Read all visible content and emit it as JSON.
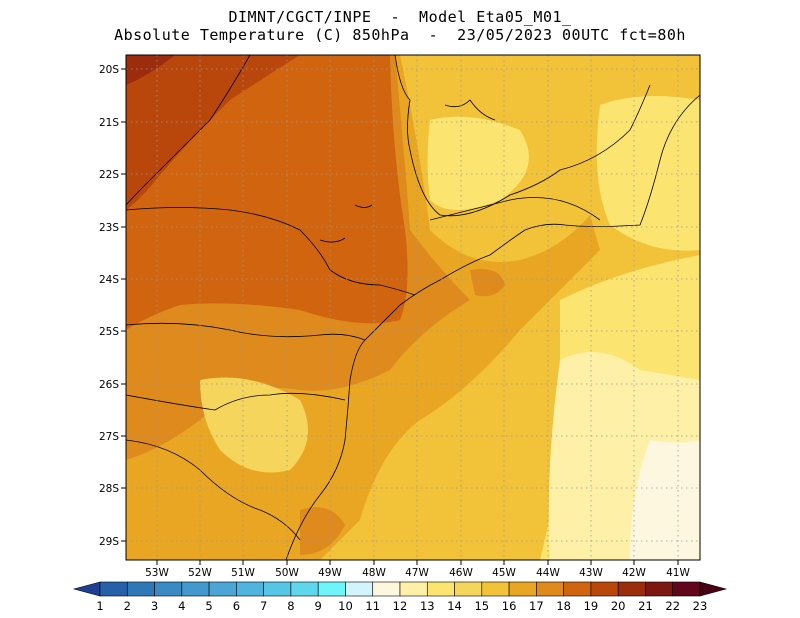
{
  "header": {
    "line1": "DIMNT/CGCT/INPE  -  Model Eta05_M01_",
    "line2": "Absolute Temperature (C) 850hPa  -  23/05/2023 00UTC fct=80h"
  },
  "map": {
    "lat_labels": [
      "20S",
      "21S",
      "22S",
      "23S",
      "24S",
      "25S",
      "26S",
      "27S",
      "28S",
      "29S"
    ],
    "lon_labels": [
      "53W",
      "52W",
      "51W",
      "50W",
      "49W",
      "48W",
      "47W",
      "46W",
      "45W",
      "44W",
      "43W",
      "42W",
      "41W"
    ],
    "lon_range": [
      -53.75,
      -40.55
    ],
    "lat_range": [
      -29.4,
      -19.9
    ],
    "gridlines": "dotted"
  },
  "colorbar": {
    "labels": [
      "1",
      "2",
      "3",
      "4",
      "5",
      "6",
      "7",
      "8",
      "9",
      "10",
      "11",
      "12",
      "13",
      "14",
      "15",
      "16",
      "17",
      "18",
      "19",
      "20",
      "21",
      "22",
      "23"
    ],
    "colors": [
      "#1e3f93",
      "#2660a9",
      "#2f78b8",
      "#3a8ac4",
      "#4398cd",
      "#4ba6d6",
      "#4fb5de",
      "#55c6e6",
      "#5ed6ec",
      "#6ef5fb",
      "#d4f4fb",
      "#fdf7e0",
      "#fef1a7",
      "#fbe46f",
      "#f5d55b",
      "#f2c239",
      "#e9a623",
      "#de8a1d",
      "#d0640f",
      "#b9470b",
      "#9b2c0c",
      "#7d1810",
      "#62061d",
      "#4a0012"
    ]
  }
}
